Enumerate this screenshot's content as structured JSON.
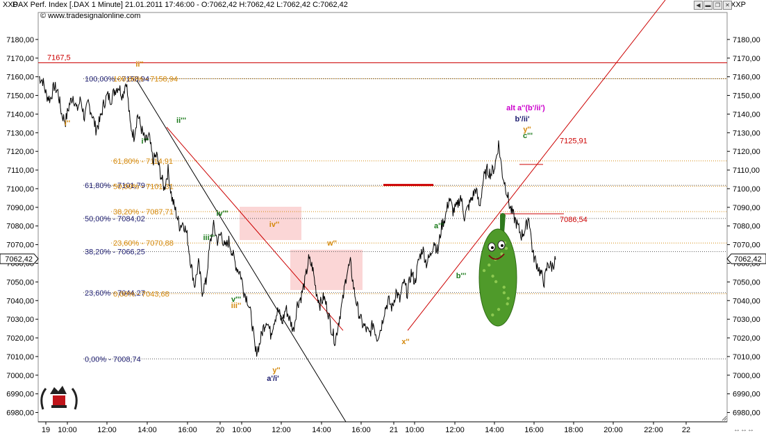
{
  "header": {
    "symbol": "XXP",
    "title": "DAX Perf. Index [.DAX  1 Minute] 21.01.2011 17:46:00 - O:7062,42 H:7062,42 L:7062,42 C:7062,42",
    "website": "www.tradesignalonline.com",
    "right_symbol": "XXP"
  },
  "colors": {
    "price": "#000000",
    "resistance": "#cc0000",
    "fib_blue": "#1a1a6e",
    "fib_orange": "#d4880a",
    "wave_green": "#1a7a1a",
    "wave_purple": "#cc00cc",
    "zone": "#f9c8c8"
  },
  "chart_data": {
    "type": "line",
    "ylim": [
      6975,
      7190
    ],
    "y_ticks": [
      "7180,00",
      "7170,00",
      "7160,00",
      "7150,00",
      "7140,00",
      "7130,00",
      "7120,00",
      "7110,00",
      "7100,00",
      "7090,00",
      "7080,00",
      "7070,00",
      "7060,00",
      "7050,00",
      "7040,00",
      "7030,00",
      "7020,00",
      "7010,00",
      "7000,00",
      "6990,00",
      "6980,00"
    ],
    "x_ticks": [
      "19",
      "10:00",
      "12:00",
      "14:00",
      "16:00",
      "20",
      "10:00",
      "12:00",
      "14:00",
      "16:00",
      "21",
      "10:00",
      "12:00",
      "14:00",
      "16:00",
      "18:00",
      "20:00",
      "22:00",
      "22"
    ],
    "last_price": "7062,42",
    "series": [
      {
        "values": [
          7160,
          7158,
          7150,
          7148,
          7155,
          7152,
          7140,
          7136,
          7145,
          7150,
          7142,
          7148,
          7138,
          7146,
          7140,
          7132,
          7136,
          7145,
          7150,
          7148,
          7153,
          7155,
          7150,
          7158,
          7135,
          7128,
          7140,
          7132,
          7125,
          7128,
          7115,
          7118,
          7108,
          7100,
          7110,
          7095,
          7088,
          7080,
          7082,
          7075,
          7060,
          7048,
          7060,
          7045,
          7050,
          7070,
          7080,
          7072,
          7076,
          7068,
          7072,
          7065,
          7058,
          7055,
          7045,
          7040,
          7030,
          7012,
          7016,
          7025,
          7030,
          7022,
          7030,
          7035,
          7028,
          7036,
          7030,
          7024,
          7038,
          7042,
          7050,
          7062,
          7058,
          7045,
          7038,
          7042,
          7035,
          7025,
          7018,
          7030,
          7040,
          7055,
          7060,
          7045,
          7035,
          7028,
          7025,
          7022,
          7028,
          7020,
          7025,
          7035,
          7040,
          7036,
          7045,
          7040,
          7050,
          7044,
          7055,
          7050,
          7062,
          7068,
          7060,
          7064,
          7072,
          7066,
          7080,
          7085,
          7095,
          7088,
          7090,
          7096,
          7085,
          7090,
          7095,
          7100,
          7090,
          7105,
          7110,
          7108,
          7112,
          7124,
          7108,
          7100,
          7090,
          7085,
          7080,
          7075,
          7078,
          7085,
          7065,
          7060,
          7055,
          7050,
          7060,
          7058,
          7062
        ]
      }
    ],
    "levels": [
      {
        "label": "7167,5",
        "value": 7167.5
      },
      {
        "label": "7125,91",
        "value": 7125.91
      },
      {
        "label": "7086,54",
        "value": 7086.54
      }
    ],
    "fib_blue": [
      {
        "label": "100,00% - 7158,94",
        "value": 7158.94
      },
      {
        "label": "61,80% - 7101,79",
        "value": 7101.79
      },
      {
        "label": "50,00% - 7084,02",
        "value": 7084.02
      },
      {
        "label": "38,20% - 7066,25",
        "value": 7066.25
      },
      {
        "label": "23,60% - 7044,27",
        "value": 7044.27
      },
      {
        "label": "0,00% - 7008,74",
        "value": 7008.74
      }
    ],
    "fib_orange": [
      {
        "label": "100,00% - 7158,94",
        "value": 7158.94
      },
      {
        "label": "61,80% - 7114,91",
        "value": 7114.91
      },
      {
        "label": "50,00% - 7101,31",
        "value": 7101.31
      },
      {
        "label": "38,20% - 7087,71",
        "value": 7087.71
      },
      {
        "label": "23,60% - 7070,88",
        "value": 7070.88
      },
      {
        "label": "0,00% - 7043,68",
        "value": 7043.68
      }
    ],
    "wave_labels": [
      {
        "text": "i''",
        "color": "orange"
      },
      {
        "text": "ii''",
        "color": "orange"
      },
      {
        "text": "i'''",
        "color": "green"
      },
      {
        "text": "ii'''",
        "color": "green"
      },
      {
        "text": "iii'''",
        "color": "green"
      },
      {
        "text": "iv'''",
        "color": "green"
      },
      {
        "text": "iv''",
        "color": "orange"
      },
      {
        "text": "v'''",
        "color": "green"
      },
      {
        "text": "iii''",
        "color": "orange"
      },
      {
        "text": "y''",
        "color": "orange"
      },
      {
        "text": "a'/i'",
        "color": "navy"
      },
      {
        "text": "w''",
        "color": "orange"
      },
      {
        "text": "x''",
        "color": "orange"
      },
      {
        "text": "a'''",
        "color": "green"
      },
      {
        "text": "b'''",
        "color": "green"
      },
      {
        "text": "c'''",
        "color": "green"
      },
      {
        "text": "y''",
        "color": "orange"
      },
      {
        "text": "b'/ii'",
        "color": "navy"
      },
      {
        "text": "alt a''(b'/ii')",
        "color": "purple"
      }
    ]
  }
}
